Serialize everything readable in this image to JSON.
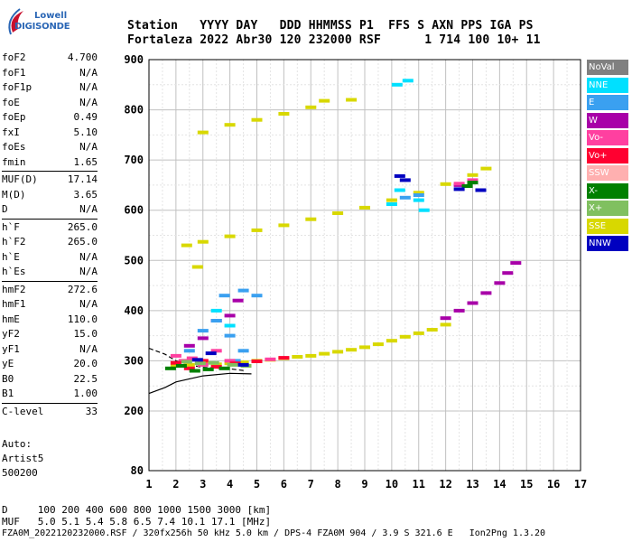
{
  "logo": {
    "line1": "Lowell",
    "line2": "DIGISONDE"
  },
  "header": {
    "labels": [
      "Station",
      "YYYY",
      "DAY",
      "DDD",
      "HHMMSS",
      "P1",
      "FFS",
      "S",
      "AXN",
      "PPS",
      "IGA",
      "PS"
    ],
    "values": [
      "Fortaleza",
      "2022",
      "Abr30",
      "120",
      "232000",
      "RSF",
      "1",
      "714",
      "100",
      "10+",
      "11"
    ]
  },
  "params": [
    {
      "k": "foF2",
      "v": "4.700"
    },
    {
      "k": "foF1",
      "v": "N/A"
    },
    {
      "k": "foF1p",
      "v": "N/A"
    },
    {
      "k": "foE",
      "v": "N/A"
    },
    {
      "k": "foEp",
      "v": "0.49"
    },
    {
      "k": "fxI",
      "v": "5.10"
    },
    {
      "k": "foEs",
      "v": "N/A"
    },
    {
      "k": "fmin",
      "v": "1.65"
    },
    {
      "sep": true
    },
    {
      "k": "MUF(D)",
      "v": "17.14"
    },
    {
      "k": "M(D)",
      "v": "3.65"
    },
    {
      "k": "D",
      "v": "N/A"
    },
    {
      "sep": true
    },
    {
      "k": "h`F",
      "v": "265.0"
    },
    {
      "k": "h`F2",
      "v": "265.0"
    },
    {
      "k": "h`E",
      "v": "N/A"
    },
    {
      "k": "h`Es",
      "v": "N/A"
    },
    {
      "sep": true
    },
    {
      "k": "hmF2",
      "v": "272.6"
    },
    {
      "k": "hmF1",
      "v": "N/A"
    },
    {
      "k": "hmE",
      "v": "110.0"
    },
    {
      "k": "yF2",
      "v": "15.0"
    },
    {
      "k": "yF1",
      "v": "N/A"
    },
    {
      "k": "yE",
      "v": "20.0"
    },
    {
      "k": "B0",
      "v": "22.5"
    },
    {
      "k": "B1",
      "v": "1.00"
    },
    {
      "sep": true
    },
    {
      "k": "C-level",
      "v": "33"
    }
  ],
  "auto": {
    "l1": "Auto:",
    "l2": "Artist5",
    "l3": "500200"
  },
  "footer": {
    "d_label": "D",
    "d_values": [
      "100",
      "200",
      "400",
      "600",
      "800",
      "1000",
      "1500",
      "3000"
    ],
    "d_unit": "[km]",
    "muf_label": "MUF",
    "muf_values": [
      "5.0",
      "5.1",
      "5.4",
      "5.8",
      "6.5",
      "7.4",
      "10.1",
      "17.1"
    ],
    "muf_unit": "[MHz]",
    "info": "FZA0M_2022120232000.RSF / 320fx256h 50 kHz 5.0 km / DPS-4 FZA0M 904 / 3.9 S 321.6 E   Ion2Png 1.3.20"
  },
  "legend": [
    {
      "label": "NoVal",
      "color": "#808080"
    },
    {
      "label": "NNE",
      "color": "#00e0ff"
    },
    {
      "label": "E",
      "color": "#3aa0f0"
    },
    {
      "label": "W",
      "color": "#a800a8"
    },
    {
      "label": "Vo-",
      "color": "#ff40a0"
    },
    {
      "label": "Vo+",
      "color": "#ff0030"
    },
    {
      "label": "SSW",
      "color": "#ffb0b0"
    },
    {
      "label": "X-",
      "color": "#008000"
    },
    {
      "label": "X+",
      "color": "#80c060"
    },
    {
      "label": "SSE",
      "color": "#d8d800"
    },
    {
      "label": "NNW",
      "color": "#0000c0"
    }
  ],
  "chart_data": {
    "type": "scatter",
    "x_ticks": [
      1,
      2,
      3,
      4,
      5,
      6,
      7,
      8,
      9,
      10,
      11,
      12,
      13,
      14,
      15,
      16,
      17
    ],
    "y_ticks": [
      80,
      200,
      300,
      400,
      500,
      600,
      700,
      800,
      900
    ],
    "xlim": [
      1,
      17
    ],
    "ylim": [
      80,
      900
    ],
    "grid": true,
    "series": [
      {
        "name": "SSE",
        "color": "#d8d800",
        "points": [
          [
            2.0,
            290
          ],
          [
            2.5,
            292
          ],
          [
            3.0,
            293
          ],
          [
            3.5,
            293
          ],
          [
            4.0,
            295
          ],
          [
            4.5,
            297
          ],
          [
            5.0,
            300
          ],
          [
            5.5,
            302
          ],
          [
            6.0,
            305
          ],
          [
            6.5,
            308
          ],
          [
            7.0,
            310
          ],
          [
            7.5,
            314
          ],
          [
            8.0,
            318
          ],
          [
            8.5,
            322
          ],
          [
            9.0,
            327
          ],
          [
            9.5,
            333
          ],
          [
            10.0,
            340
          ],
          [
            10.5,
            348
          ],
          [
            11.0,
            355
          ],
          [
            11.5,
            362
          ],
          [
            12.0,
            372
          ],
          [
            2.4,
            530
          ],
          [
            3.0,
            537
          ],
          [
            4.0,
            548
          ],
          [
            5.0,
            560
          ],
          [
            6.0,
            570
          ],
          [
            7.0,
            582
          ],
          [
            8.0,
            594
          ],
          [
            9.0,
            605
          ],
          [
            10.0,
            620
          ],
          [
            11.0,
            635
          ],
          [
            12.0,
            652
          ],
          [
            13.0,
            670
          ],
          [
            13.5,
            683
          ],
          [
            2.8,
            487
          ],
          [
            3.0,
            755
          ],
          [
            4.0,
            770
          ],
          [
            5.0,
            780
          ],
          [
            6.0,
            792
          ],
          [
            7.0,
            805
          ],
          [
            7.5,
            818
          ],
          [
            8.5,
            820
          ]
        ]
      },
      {
        "name": "W",
        "color": "#a800a8",
        "points": [
          [
            12.0,
            385
          ],
          [
            12.5,
            400
          ],
          [
            13.0,
            415
          ],
          [
            13.5,
            435
          ],
          [
            14.0,
            455
          ],
          [
            14.3,
            475
          ],
          [
            14.6,
            495
          ],
          [
            3.5,
            380
          ],
          [
            4.0,
            390
          ],
          [
            4.3,
            420
          ],
          [
            2.5,
            330
          ],
          [
            3.0,
            345
          ],
          [
            12.5,
            650
          ]
        ]
      },
      {
        "name": "E",
        "color": "#3aa0f0",
        "points": [
          [
            3.0,
            360
          ],
          [
            3.5,
            380
          ],
          [
            4.0,
            350
          ],
          [
            3.8,
            430
          ],
          [
            4.5,
            440
          ],
          [
            5.0,
            430
          ],
          [
            2.5,
            320
          ],
          [
            4.2,
            300
          ],
          [
            4.5,
            320
          ],
          [
            10.5,
            625
          ],
          [
            11.0,
            630
          ]
        ]
      },
      {
        "name": "NNE",
        "color": "#00e0ff",
        "points": [
          [
            10.2,
            850
          ],
          [
            10.6,
            858
          ],
          [
            11.0,
            620
          ],
          [
            10.0,
            612
          ],
          [
            3.5,
            400
          ],
          [
            4.0,
            370
          ],
          [
            10.3,
            640
          ],
          [
            11.2,
            600
          ]
        ]
      },
      {
        "name": "Vo-",
        "color": "#ff40a0",
        "points": [
          [
            2.0,
            310
          ],
          [
            2.3,
            300
          ],
          [
            2.6,
            305
          ],
          [
            3.0,
            292
          ],
          [
            3.5,
            320
          ],
          [
            4.0,
            300
          ],
          [
            5.5,
            303
          ],
          [
            12.5,
            653
          ],
          [
            13.0,
            660
          ]
        ]
      },
      {
        "name": "Vo+",
        "color": "#ff0030",
        "points": [
          [
            2.0,
            296
          ],
          [
            2.5,
            285
          ],
          [
            3.0,
            300
          ],
          [
            3.5,
            288
          ],
          [
            4.2,
            295
          ],
          [
            5.0,
            299
          ],
          [
            6.0,
            306
          ]
        ]
      },
      {
        "name": "X-",
        "color": "#008000",
        "points": [
          [
            1.8,
            285
          ],
          [
            2.2,
            290
          ],
          [
            2.7,
            280
          ],
          [
            3.2,
            283
          ],
          [
            3.8,
            285
          ],
          [
            12.8,
            648
          ],
          [
            13.0,
            655
          ]
        ]
      },
      {
        "name": "X+",
        "color": "#80c060",
        "points": [
          [
            2.4,
            298
          ],
          [
            2.9,
            295
          ],
          [
            3.4,
            296
          ],
          [
            4.1,
            292
          ],
          [
            4.6,
            290
          ]
        ]
      },
      {
        "name": "NNW",
        "color": "#0000c0",
        "points": [
          [
            10.3,
            668
          ],
          [
            10.5,
            660
          ],
          [
            12.5,
            642
          ],
          [
            13.3,
            640
          ],
          [
            2.8,
            302
          ],
          [
            3.3,
            315
          ],
          [
            4.5,
            292
          ]
        ]
      }
    ],
    "profile_curves": [
      {
        "points": [
          [
            1.0,
            325
          ],
          [
            1.6,
            313
          ],
          [
            2.0,
            300
          ],
          [
            2.5,
            292
          ],
          [
            3.0,
            287
          ],
          [
            4.0,
            284
          ],
          [
            4.6,
            280
          ]
        ]
      },
      {
        "points": [
          [
            1.0,
            235
          ],
          [
            1.6,
            247
          ],
          [
            2.0,
            258
          ],
          [
            2.5,
            264
          ],
          [
            3.0,
            270
          ],
          [
            4.0,
            275
          ],
          [
            4.8,
            274
          ]
        ]
      }
    ]
  }
}
